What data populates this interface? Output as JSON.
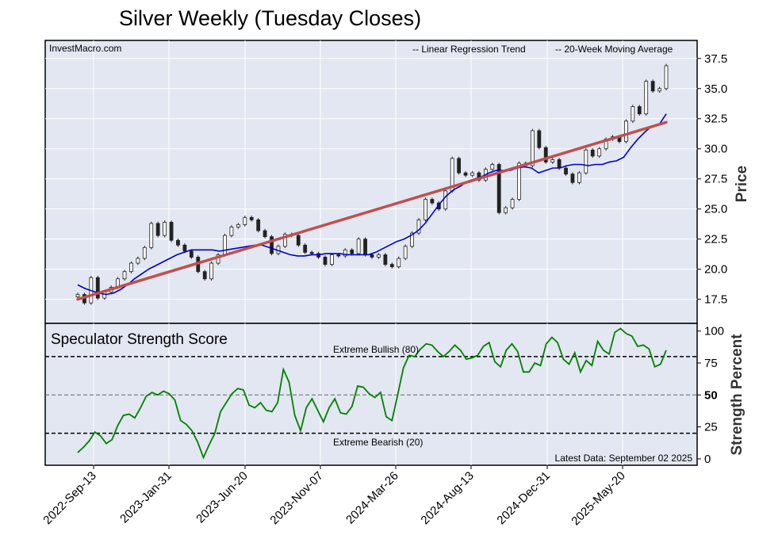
{
  "chart_data": [
    {
      "type": "candlestick",
      "title": "Silver Weekly (Tuesday Closes)",
      "watermark": "InvestMacro.com",
      "ylabel": "Price",
      "ylim": [
        15.5,
        39
      ],
      "yticks": [
        17.5,
        20.0,
        22.5,
        25.0,
        27.5,
        30.0,
        32.5,
        35.0,
        37.5
      ],
      "legend": [
        {
          "label": "-- Linear Regression Trend",
          "color": "#8b1a1a"
        },
        {
          "label": "-- 20-Week Moving Average",
          "color": "#0000cc"
        }
      ],
      "regression": {
        "start": 17.5,
        "end": 32.2,
        "color": "#c0504d"
      },
      "moving_average": [
        18.7,
        18.4,
        18.2,
        18.0,
        17.9,
        18.0,
        18.3,
        18.7,
        19.2,
        19.6,
        20.0,
        20.3,
        20.6,
        20.9,
        21.2,
        21.4,
        21.6,
        21.6,
        21.6,
        21.6,
        21.5,
        21.6,
        21.7,
        21.8,
        21.9,
        22.0,
        22.0,
        21.8,
        21.6,
        21.4,
        21.2,
        21.1,
        21.1,
        21.2,
        21.2,
        21.3,
        21.3,
        21.3,
        21.2,
        21.2,
        21.2,
        21.2,
        21.4,
        21.7,
        22.0,
        22.3,
        22.5,
        22.8,
        23.2,
        23.8,
        24.6,
        25.4,
        26.1,
        26.6,
        26.9,
        27.3,
        27.5,
        27.7,
        28.0,
        28.2,
        28.2,
        28.2,
        28.4,
        28.5,
        28.4,
        28.0,
        28.2,
        28.4,
        28.4,
        28.6,
        28.7,
        28.7,
        28.6,
        28.7,
        28.7,
        28.9,
        29.0,
        29.3,
        30.1,
        30.8,
        31.4,
        31.9,
        32.0,
        32.9
      ],
      "closes": [
        17.9,
        17.2,
        19.3,
        17.6,
        18.1,
        18.5,
        19.2,
        19.8,
        20.5,
        20.9,
        21.8,
        23.8,
        22.8,
        23.9,
        22.4,
        22.0,
        21.5,
        21.0,
        19.8,
        19.2,
        20.5,
        21.2,
        22.8,
        23.5,
        23.7,
        24.3,
        24.1,
        23.2,
        22.7,
        21.3,
        21.9,
        22.9,
        22.8,
        22.0,
        21.4,
        21.3,
        21.0,
        20.4,
        21.2,
        21.1,
        21.6,
        21.3,
        22.5,
        21.2,
        21.0,
        21.2,
        20.4,
        20.2,
        20.9,
        21.9,
        23.0,
        24.1,
        25.8,
        25.5,
        25.0,
        26.5,
        29.2,
        28.0,
        27.8,
        28.0,
        27.4,
        28.3,
        28.7,
        24.7,
        25.1,
        25.8,
        28.8,
        28.6,
        31.5,
        30.1,
        28.9,
        29.1,
        28.4,
        27.9,
        27.2,
        28.0,
        29.9,
        29.4,
        30.0,
        30.8,
        31.0,
        30.6,
        32.3,
        33.5,
        32.9,
        35.6,
        34.8,
        35.0,
        36.9
      ],
      "ss_marker": 0.0
    },
    {
      "type": "line",
      "title": "Speculator Strength Score",
      "ylabel": "Strength Percent",
      "ylim": [
        -5,
        106
      ],
      "yticks": [
        0,
        25,
        50,
        75,
        100
      ],
      "series": [
        {
          "color": "#008000",
          "values": [
            5,
            9,
            14,
            21,
            18,
            12,
            15,
            26,
            34,
            35,
            32,
            40,
            49,
            52,
            50,
            53,
            51,
            46,
            30,
            27,
            22,
            13,
            1,
            11,
            20,
            37,
            44,
            51,
            55,
            54,
            42,
            40,
            44,
            38,
            37,
            44,
            70,
            60,
            34,
            22,
            40,
            47,
            38,
            29,
            40,
            47,
            36,
            35,
            41,
            57,
            56,
            51,
            48,
            52,
            33,
            30,
            50,
            71,
            81,
            80,
            86,
            90,
            89,
            84,
            80,
            84,
            89,
            85,
            78,
            79,
            81,
            88,
            91,
            76,
            72,
            85,
            90,
            84,
            68,
            68,
            75,
            73,
            90,
            95,
            91,
            78,
            74,
            83,
            68,
            77,
            73,
            92,
            85,
            82,
            99,
            102,
            98,
            96,
            88,
            89,
            86,
            72,
            74,
            85
          ]
        }
      ],
      "hlines": [
        {
          "value": 80,
          "label": "Extreme Bullish (80)",
          "style": "dashed"
        },
        {
          "value": 50,
          "label": "",
          "style": "dashed-gray"
        },
        {
          "value": 20,
          "label": "Extreme Bearish (20)",
          "style": "dashed"
        }
      ],
      "footnote": "Latest Data: September 02 2025",
      "x_tick_labels": [
        "2022-Sep-13",
        "2023-Jan-31",
        "2023-Jun-20",
        "2023-Nov-07",
        "2024-Mar-26",
        "2024-Aug-13",
        "2024-Dec-31",
        "2025-May-20"
      ],
      "value_label": "50"
    }
  ]
}
